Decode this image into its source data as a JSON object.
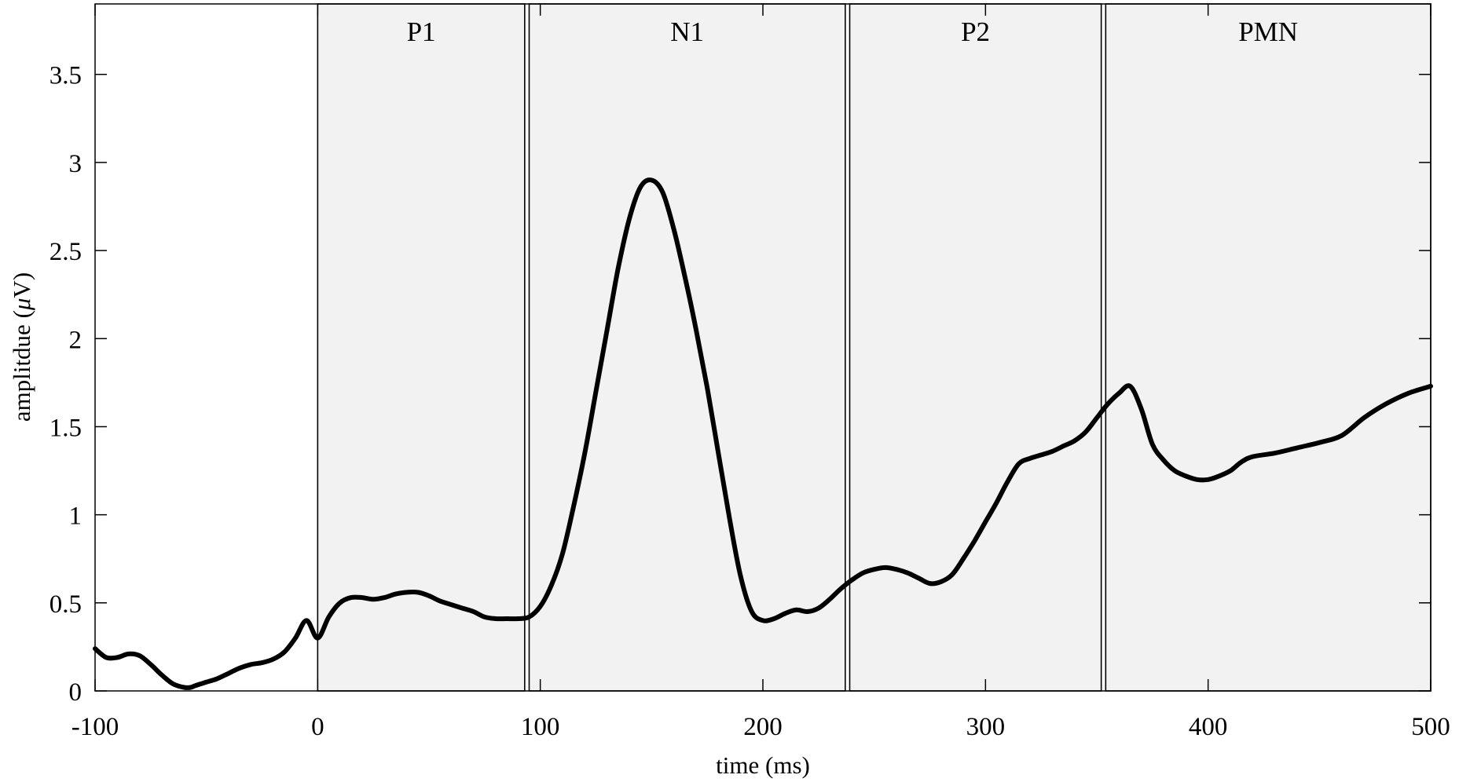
{
  "chart_data": {
    "type": "line",
    "title": "",
    "xlabel": "time (ms)",
    "ylabel": "amplitdue (μV)",
    "xlim": [
      -100,
      500
    ],
    "ylim": [
      0,
      3.9
    ],
    "xticks": [
      -100,
      0,
      100,
      200,
      300,
      400,
      500
    ],
    "xtick_labels": [
      "-100",
      "0",
      "100",
      "200",
      "300",
      "400",
      "500"
    ],
    "yticks": [
      0,
      0.5,
      1,
      1.5,
      2,
      2.5,
      3,
      3.5
    ],
    "ytick_labels": [
      "0",
      "0.5",
      "1",
      "1.5",
      "2",
      "2.5",
      "3",
      "3.5"
    ],
    "grid": false,
    "regions": [
      {
        "label": "P1",
        "start": 0,
        "end": 93
      },
      {
        "label": "N1",
        "start": 95,
        "end": 237
      },
      {
        "label": "P2",
        "start": 239,
        "end": 352
      },
      {
        "label": "PMN",
        "start": 354,
        "end": 500
      }
    ],
    "region_fill": "#f2f2f2",
    "line_color": "#000000",
    "series": [
      {
        "x": [
          -100,
          -95,
          -90,
          -85,
          -80,
          -75,
          -70,
          -65,
          -60,
          -57,
          -55,
          -50,
          -45,
          -40,
          -35,
          -30,
          -25,
          -20,
          -15,
          -10,
          -5,
          0,
          5,
          10,
          15,
          20,
          25,
          30,
          35,
          40,
          45,
          50,
          55,
          60,
          65,
          70,
          75,
          80,
          85,
          90,
          95,
          100,
          105,
          110,
          115,
          120,
          125,
          130,
          135,
          140,
          145,
          150,
          155,
          160,
          165,
          170,
          175,
          180,
          185,
          190,
          195,
          200,
          205,
          210,
          215,
          220,
          225,
          230,
          235,
          240,
          245,
          250,
          255,
          260,
          265,
          270,
          275,
          280,
          285,
          290,
          295,
          300,
          305,
          310,
          315,
          320,
          325,
          330,
          335,
          340,
          345,
          350,
          355,
          360,
          365,
          370,
          375,
          380,
          385,
          390,
          395,
          400,
          405,
          410,
          415,
          420,
          430,
          440,
          450,
          460,
          470,
          480,
          490,
          500
        ],
        "y": [
          0.24,
          0.19,
          0.19,
          0.21,
          0.2,
          0.15,
          0.09,
          0.04,
          0.02,
          0.02,
          0.03,
          0.05,
          0.07,
          0.1,
          0.13,
          0.15,
          0.16,
          0.18,
          0.22,
          0.3,
          0.4,
          0.3,
          0.42,
          0.5,
          0.53,
          0.53,
          0.52,
          0.53,
          0.55,
          0.56,
          0.56,
          0.54,
          0.51,
          0.49,
          0.47,
          0.45,
          0.42,
          0.41,
          0.41,
          0.41,
          0.42,
          0.48,
          0.6,
          0.78,
          1.05,
          1.35,
          1.7,
          2.05,
          2.4,
          2.68,
          2.86,
          2.9,
          2.83,
          2.62,
          2.35,
          2.05,
          1.72,
          1.35,
          0.98,
          0.65,
          0.45,
          0.4,
          0.41,
          0.44,
          0.46,
          0.45,
          0.47,
          0.52,
          0.58,
          0.63,
          0.67,
          0.69,
          0.7,
          0.69,
          0.67,
          0.64,
          0.61,
          0.62,
          0.66,
          0.75,
          0.85,
          0.96,
          1.07,
          1.19,
          1.29,
          1.32,
          1.34,
          1.36,
          1.39,
          1.42,
          1.47,
          1.55,
          1.63,
          1.69,
          1.73,
          1.6,
          1.4,
          1.31,
          1.25,
          1.22,
          1.2,
          1.2,
          1.22,
          1.25,
          1.3,
          1.33,
          1.35,
          1.38,
          1.41,
          1.45,
          1.55,
          1.63,
          1.69,
          1.73
        ]
      }
    ]
  }
}
